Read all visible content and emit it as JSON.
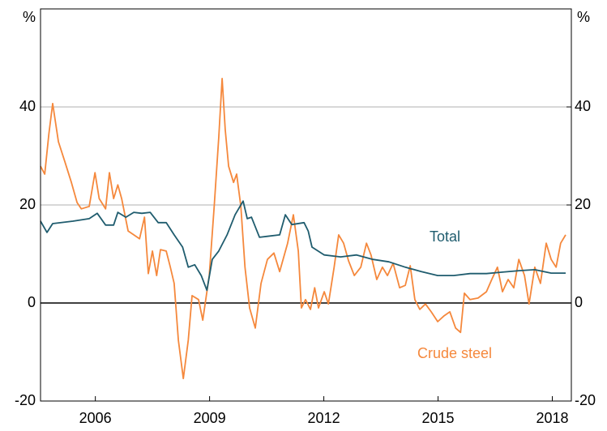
{
  "chart_data": {
    "type": "line",
    "y_unit": "%",
    "y2_unit": "%",
    "xlim": [
      2005.06,
      2019.0
    ],
    "xticks": [
      {
        "value": 2006.5,
        "label": "2006"
      },
      {
        "value": 2009.5,
        "label": "2009"
      },
      {
        "value": 2012.5,
        "label": "2012"
      },
      {
        "value": 2015.5,
        "label": "2015"
      },
      {
        "value": 2018.5,
        "label": "2018"
      }
    ],
    "ylim": [
      -20,
      60
    ],
    "yticks": [
      -20,
      0,
      20,
      40
    ],
    "y2lim": [
      -20,
      60
    ],
    "y2ticks": [
      -20,
      0,
      20,
      40
    ],
    "grid": true,
    "annotations": [
      "Total",
      "Crude steel"
    ],
    "series": [
      {
        "name": "Total",
        "color": "#1f5c6e",
        "x": [
          2005.06,
          2005.23,
          2005.38,
          2005.91,
          2006.34,
          2006.55,
          2006.77,
          2006.98,
          2007.09,
          2007.3,
          2007.51,
          2007.72,
          2007.94,
          2008.15,
          2008.36,
          2008.57,
          2008.79,
          2008.94,
          2009.11,
          2009.28,
          2009.43,
          2009.57,
          2009.74,
          2009.96,
          2010.17,
          2010.38,
          2010.49,
          2010.6,
          2010.81,
          2011.02,
          2011.34,
          2011.49,
          2011.66,
          2011.98,
          2012.09,
          2012.19,
          2012.51,
          2012.94,
          2013.36,
          2013.79,
          2014.21,
          2014.64,
          2015.06,
          2015.49,
          2015.91,
          2016.34,
          2016.77,
          2017.19,
          2017.62,
          2018.04,
          2018.47,
          2018.85
        ],
        "values": [
          16.7,
          14.4,
          16.2,
          16.7,
          17.2,
          18.3,
          15.9,
          15.9,
          18.5,
          17.5,
          18.5,
          18.3,
          18.5,
          16.4,
          16.4,
          13.9,
          11.4,
          7.3,
          7.8,
          5.6,
          2.6,
          8.9,
          10.6,
          13.9,
          18.0,
          20.8,
          17.2,
          17.5,
          13.4,
          13.6,
          13.9,
          18.0,
          16.0,
          16.4,
          14.7,
          11.4,
          9.8,
          9.4,
          9.8,
          8.9,
          8.4,
          7.3,
          6.4,
          5.6,
          5.6,
          6.0,
          6.0,
          6.3,
          6.6,
          6.8,
          6.1,
          6.1
        ]
      },
      {
        "name": "Crude steel",
        "color": "#f5883c",
        "x": [
          2005.06,
          2005.17,
          2005.28,
          2005.38,
          2005.53,
          2005.7,
          2005.87,
          2006.02,
          2006.13,
          2006.34,
          2006.49,
          2006.6,
          2006.77,
          2006.87,
          2006.98,
          2007.09,
          2007.19,
          2007.36,
          2007.51,
          2007.66,
          2007.79,
          2007.89,
          2008.0,
          2008.11,
          2008.21,
          2008.36,
          2008.47,
          2008.57,
          2008.68,
          2008.81,
          2008.94,
          2009.04,
          2009.21,
          2009.32,
          2009.49,
          2009.62,
          2009.74,
          2009.83,
          2009.91,
          2010.0,
          2010.13,
          2010.21,
          2010.32,
          2010.43,
          2010.55,
          2010.7,
          2010.85,
          2011.02,
          2011.19,
          2011.34,
          2011.55,
          2011.7,
          2011.83,
          2011.91,
          2012.02,
          2012.15,
          2012.26,
          2012.36,
          2012.51,
          2012.62,
          2012.77,
          2012.89,
          2013.02,
          2013.15,
          2013.3,
          2013.47,
          2013.62,
          2013.74,
          2013.89,
          2014.04,
          2014.17,
          2014.32,
          2014.49,
          2014.64,
          2014.77,
          2014.89,
          2015.02,
          2015.17,
          2015.32,
          2015.49,
          2015.66,
          2015.81,
          2015.96,
          2016.09,
          2016.19,
          2016.34,
          2016.55,
          2016.77,
          2016.91,
          2017.06,
          2017.19,
          2017.34,
          2017.49,
          2017.62,
          2017.77,
          2017.89,
          2018.04,
          2018.19,
          2018.34,
          2018.47,
          2018.6,
          2018.72,
          2018.85
        ],
        "values": [
          27.9,
          26.3,
          34.5,
          40.7,
          32.9,
          28.8,
          24.6,
          20.5,
          19.2,
          19.7,
          26.6,
          21.3,
          19.2,
          26.6,
          21.3,
          24.1,
          21.3,
          14.7,
          13.9,
          13.1,
          17.5,
          6.0,
          10.6,
          5.6,
          10.9,
          10.6,
          7.3,
          4.0,
          -7.6,
          -15.4,
          -7.6,
          1.5,
          0.7,
          -3.5,
          5.6,
          19.7,
          33.7,
          45.8,
          35.4,
          27.9,
          24.6,
          26.3,
          19.7,
          7.3,
          -1.0,
          -5.1,
          4.0,
          8.9,
          10.2,
          6.4,
          12.2,
          18.0,
          10.6,
          -1.0,
          0.7,
          -1.3,
          3.1,
          -1.0,
          2.3,
          -0.2,
          7.3,
          13.9,
          12.2,
          8.6,
          5.6,
          7.3,
          12.2,
          9.8,
          4.8,
          7.3,
          5.6,
          8.1,
          3.1,
          3.6,
          7.6,
          0.7,
          -1.3,
          -0.2,
          -1.8,
          -3.8,
          -2.6,
          -1.8,
          -5.1,
          -6.0,
          2.0,
          0.7,
          1.0,
          2.3,
          4.8,
          7.3,
          2.3,
          4.8,
          3.1,
          8.9,
          5.6,
          -0.2,
          7.3,
          4.0,
          12.2,
          8.9,
          7.3,
          12.2,
          13.9
        ]
      }
    ]
  }
}
